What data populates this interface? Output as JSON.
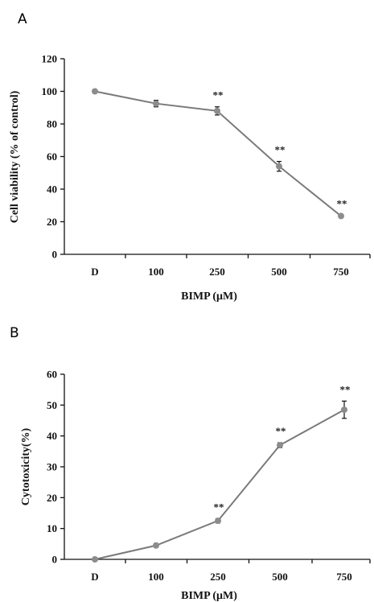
{
  "chart_data": [
    {
      "panel": "A",
      "type": "line",
      "categories": [
        "D",
        "100",
        "250",
        "500",
        "750"
      ],
      "values": [
        100,
        92.5,
        88,
        54,
        23.5
      ],
      "errors": [
        0.5,
        2.0,
        2.5,
        3.0,
        0.5
      ],
      "significance": [
        "",
        "",
        "**",
        "**",
        "**"
      ],
      "xlabel": "BIMP (μM)",
      "ylabel": "Cell viability (% of control)",
      "ylim": [
        0,
        120
      ],
      "yticks": [
        "0",
        "20",
        "40",
        "60",
        "80",
        "100",
        "120"
      ],
      "grid": false,
      "color": "#8c8c8c"
    },
    {
      "panel": "B",
      "type": "line",
      "categories": [
        "D",
        "100",
        "250",
        "500",
        "750"
      ],
      "values": [
        0,
        4.5,
        12.5,
        37,
        48.5
      ],
      "errors": [
        0.2,
        0.5,
        0.7,
        0.8,
        2.8
      ],
      "significance": [
        "",
        "",
        "**",
        "**",
        "**"
      ],
      "xlabel": "BIMP (μM)",
      "ylabel": "Cytotoxicity(%)",
      "ylim": [
        0,
        60
      ],
      "yticks": [
        "0",
        "10",
        "20",
        "30",
        "40",
        "50",
        "60"
      ],
      "grid": false,
      "color": "#8c8c8c"
    }
  ]
}
